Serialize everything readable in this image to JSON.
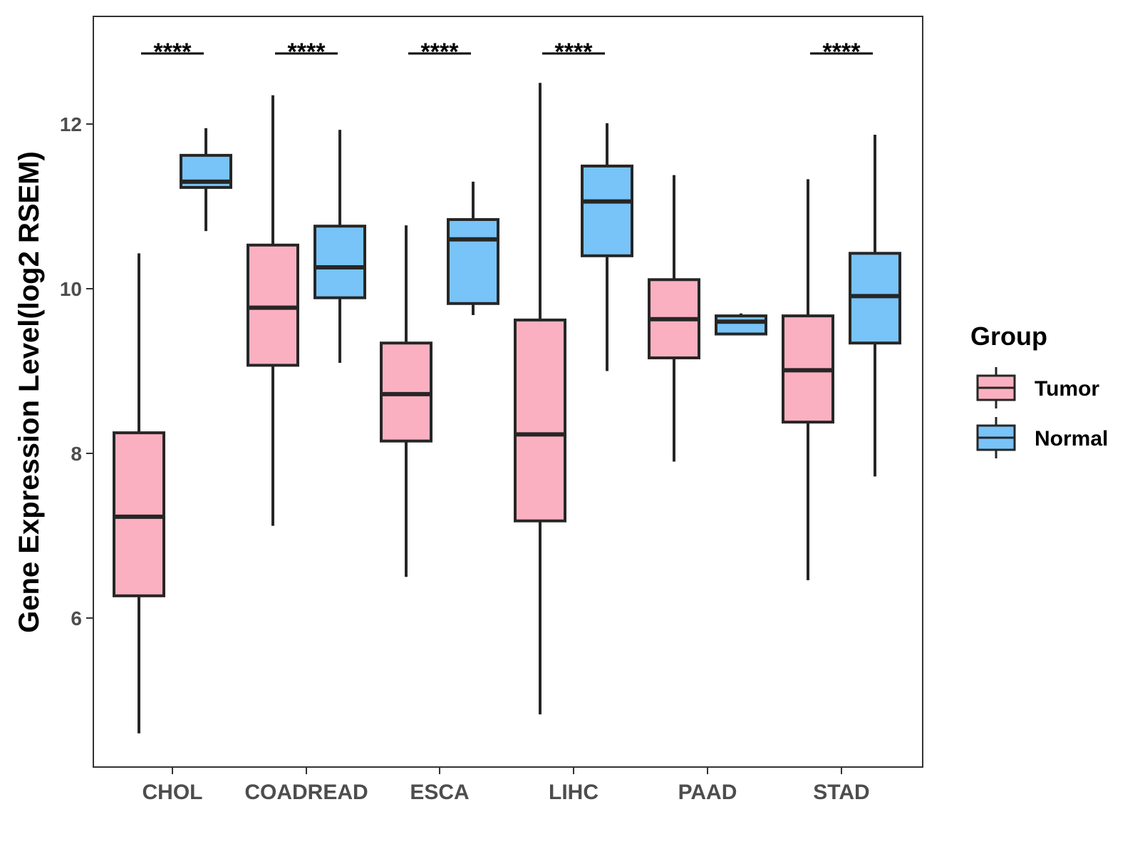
{
  "chart_data": {
    "type": "boxplot",
    "title": "",
    "xlabel": "",
    "ylabel": "Gene Expression Level(log2 RSEM)",
    "ylim": [
      4.2,
      13.3
    ],
    "yticks": [
      6,
      8,
      10,
      12
    ],
    "ytick_labels": [
      "6",
      "8",
      "10",
      "12"
    ],
    "grid": false,
    "categories": [
      "CHOL",
      "COADREAD",
      "ESCA",
      "LIHC",
      "PAAD",
      "STAD"
    ],
    "legend": {
      "title": "Group",
      "position": "right",
      "entries": [
        {
          "name": "Tumor",
          "color": "#FBB0C1"
        },
        {
          "name": "Normal",
          "color": "#78C3F7"
        }
      ]
    },
    "series": [
      {
        "name": "Tumor",
        "color": "#FBB0C1",
        "boxes": [
          {
            "category": "CHOL",
            "min": 4.6,
            "q1": 6.27,
            "median": 7.23,
            "q3": 8.25,
            "max": 10.43
          },
          {
            "category": "COADREAD",
            "min": 7.12,
            "q1": 9.07,
            "median": 9.77,
            "q3": 10.53,
            "max": 12.35
          },
          {
            "category": "ESCA",
            "min": 6.5,
            "q1": 8.15,
            "median": 8.72,
            "q3": 9.34,
            "max": 10.77
          },
          {
            "category": "LIHC",
            "min": 4.83,
            "q1": 7.18,
            "median": 8.23,
            "q3": 9.62,
            "max": 12.5
          },
          {
            "category": "PAAD",
            "min": 7.9,
            "q1": 9.16,
            "median": 9.63,
            "q3": 10.11,
            "max": 11.38
          },
          {
            "category": "STAD",
            "min": 6.46,
            "q1": 8.38,
            "median": 9.01,
            "q3": 9.67,
            "max": 11.33
          }
        ]
      },
      {
        "name": "Normal",
        "color": "#78C3F7",
        "boxes": [
          {
            "category": "CHOL",
            "min": 10.7,
            "q1": 11.23,
            "median": 11.3,
            "q3": 11.62,
            "max": 11.95
          },
          {
            "category": "COADREAD",
            "min": 9.1,
            "q1": 9.89,
            "median": 10.26,
            "q3": 10.76,
            "max": 11.93
          },
          {
            "category": "ESCA",
            "min": 9.68,
            "q1": 9.82,
            "median": 10.6,
            "q3": 10.84,
            "max": 11.3
          },
          {
            "category": "LIHC",
            "min": 9.0,
            "q1": 10.4,
            "median": 11.06,
            "q3": 11.49,
            "max": 12.01
          },
          {
            "category": "PAAD",
            "min": 9.45,
            "q1": 9.45,
            "median": 9.6,
            "q3": 9.67,
            "max": 9.7
          },
          {
            "category": "STAD",
            "min": 7.72,
            "q1": 9.34,
            "median": 9.91,
            "q3": 10.43,
            "max": 11.87
          }
        ]
      }
    ],
    "annotations": [
      {
        "category": "CHOL",
        "text": "****"
      },
      {
        "category": "COADREAD",
        "text": "****"
      },
      {
        "category": "ESCA",
        "text": "****"
      },
      {
        "category": "LIHC",
        "text": "****"
      },
      {
        "category": "STAD",
        "text": "****"
      }
    ]
  }
}
